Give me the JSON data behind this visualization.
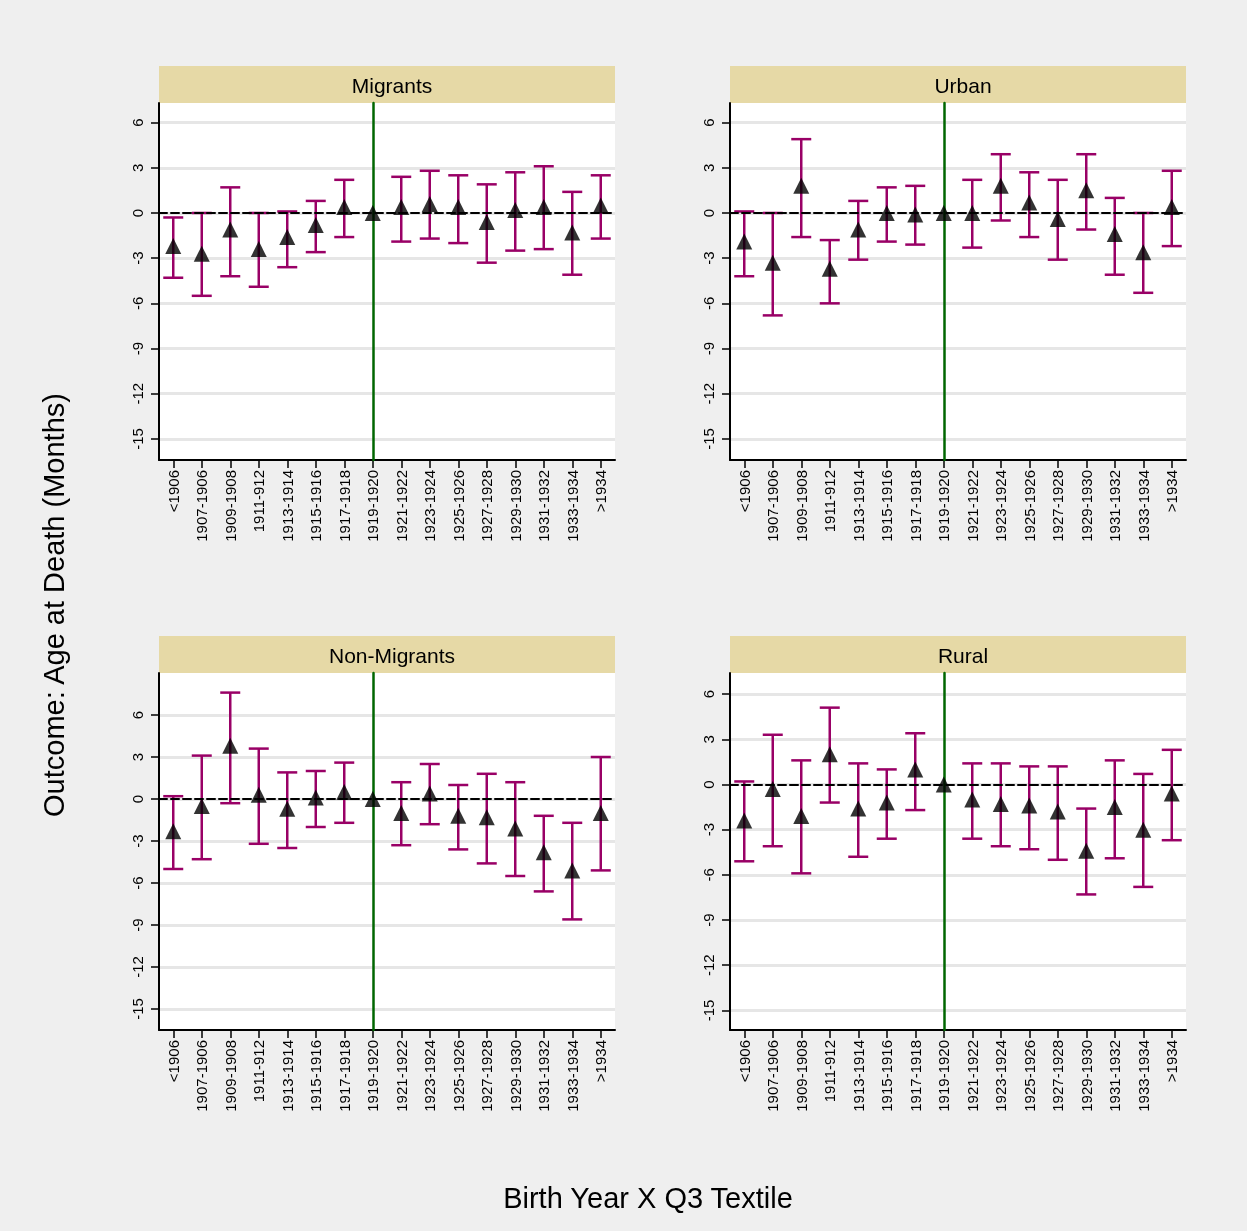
{
  "chart_data": [
    {
      "type": "scatter",
      "title": "Migrants",
      "ylabel": "Outcome: Age at Death (Months)",
      "categories": [
        "<1906",
        "1907-1906",
        "1909-1908",
        "1911-912",
        "1913-1914",
        "1915-1916",
        "1917-1918",
        "1919-1920",
        "1921-1922",
        "1923-1924",
        "1925-1926",
        "1927-1928",
        "1929-1930",
        "1931-1932",
        "1933-1934",
        ">1934"
      ],
      "series": [
        {
          "color": "#000000",
          "values": [
            -2.2,
            -2.7,
            -1.1,
            -2.4,
            -1.6,
            -0.8,
            0.4,
            0,
            0.4,
            0.6,
            0.4,
            -0.6,
            0.2,
            0.4,
            -1.3,
            0.5
          ],
          "errors": [
            [
              -4.3,
              -0.3
            ],
            [
              -5.5,
              0
            ],
            [
              -4.2,
              1.7
            ],
            [
              -4.9,
              0
            ],
            [
              -3.6,
              0.1
            ],
            [
              -2.6,
              0.8
            ],
            [
              -1.6,
              2.2
            ],
            null,
            [
              -1.9,
              2.4
            ],
            [
              -1.7,
              2.8
            ],
            [
              -2.0,
              2.5
            ],
            [
              -3.3,
              1.9
            ],
            [
              -2.5,
              2.7
            ],
            [
              -2.4,
              3.1
            ],
            [
              -4.1,
              1.4
            ],
            [
              -1.7,
              2.5
            ]
          ]
        }
      ],
      "ylim": [
        -16.4,
        7.3
      ],
      "yticks": [
        -15,
        -12,
        -9,
        -6,
        -3,
        0,
        3,
        6
      ],
      "grid": "y",
      "marker": "triangle",
      "ref_lines": [
        {
          "axis": "y",
          "value": 0,
          "color": "#000000",
          "line_style": "dashed"
        },
        {
          "axis": "x",
          "value": "1919-1920",
          "color": "#006600",
          "line_style": "solid"
        }
      ]
    },
    {
      "type": "scatter",
      "title": "Urban",
      "categories": [
        "<1906",
        "1907-1906",
        "1909-1908",
        "1911-912",
        "1913-1914",
        "1915-1916",
        "1917-1918",
        "1919-1920",
        "1921-1922",
        "1923-1924",
        "1925-1926",
        "1927-1928",
        "1929-1930",
        "1931-1932",
        "1933-1934",
        ">1934"
      ],
      "series": [
        {
          "color": "#000000",
          "values": [
            -1.9,
            -3.3,
            1.8,
            -3.7,
            -1.1,
            0,
            -0.1,
            0,
            0,
            1.8,
            0.7,
            -0.4,
            1.5,
            -1.4,
            -2.6,
            0.4
          ],
          "errors": [
            [
              -4.2,
              0.1
            ],
            [
              -6.8,
              0
            ],
            [
              -1.6,
              4.9
            ],
            [
              -6.0,
              -1.8
            ],
            [
              -3.1,
              0.8
            ],
            [
              -1.9,
              1.7
            ],
            [
              -2.1,
              1.8
            ],
            null,
            [
              -2.3,
              2.2
            ],
            [
              -0.5,
              3.9
            ],
            [
              -1.6,
              2.7
            ],
            [
              -3.1,
              2.2
            ],
            [
              -1.1,
              3.9
            ],
            [
              -4.1,
              1.0
            ],
            [
              -5.3,
              0
            ],
            [
              -2.2,
              2.8
            ]
          ]
        }
      ],
      "ylim": [
        -16.4,
        7.3
      ],
      "yticks": [
        -15,
        -12,
        -9,
        -6,
        -3,
        0,
        3,
        6
      ],
      "grid": "y",
      "marker": "triangle",
      "ref_lines": [
        {
          "axis": "y",
          "value": 0,
          "color": "#000000",
          "line_style": "dashed"
        },
        {
          "axis": "x",
          "value": "1919-1920",
          "color": "#006600",
          "line_style": "solid"
        }
      ]
    },
    {
      "type": "scatter",
      "title": "Non-Migrants",
      "xlabel": "Birth Year X Q3 Textile",
      "categories": [
        "<1906",
        "1907-1906",
        "1909-1908",
        "1911-912",
        "1913-1914",
        "1915-1916",
        "1917-1918",
        "1919-1920",
        "1921-1922",
        "1923-1924",
        "1925-1926",
        "1927-1928",
        "1929-1930",
        "1931-1932",
        "1933-1934",
        ">1934"
      ],
      "series": [
        {
          "color": "#000000",
          "values": [
            -2.3,
            -0.5,
            3.8,
            0.3,
            -0.7,
            0.1,
            0.5,
            0,
            -1.0,
            0.4,
            -1.2,
            -1.3,
            -2.1,
            -3.8,
            -5.1,
            -1.0
          ],
          "errors": [
            [
              -5.0,
              0.2
            ],
            [
              -4.3,
              3.1
            ],
            [
              -0.3,
              7.6
            ],
            [
              -3.2,
              3.6
            ],
            [
              -3.5,
              1.9
            ],
            [
              -2.0,
              2.0
            ],
            [
              -1.7,
              2.6
            ],
            null,
            [
              -3.3,
              1.2
            ],
            [
              -1.8,
              2.5
            ],
            [
              -3.6,
              1.0
            ],
            [
              -4.6,
              1.8
            ],
            [
              -5.5,
              1.2
            ],
            [
              -6.6,
              -1.2
            ],
            [
              -8.6,
              -1.7
            ],
            [
              -5.1,
              3.0
            ]
          ]
        }
      ],
      "ylim": [
        -16.5,
        9
      ],
      "yticks": [
        -15,
        -12,
        -9,
        -6,
        -3,
        0,
        3,
        6
      ],
      "grid": "y",
      "marker": "triangle",
      "ref_lines": [
        {
          "axis": "y",
          "value": 0,
          "color": "#000000",
          "line_style": "dashed"
        },
        {
          "axis": "x",
          "value": "1919-1920",
          "color": "#006600",
          "line_style": "solid"
        }
      ]
    },
    {
      "type": "scatter",
      "title": "Rural",
      "categories": [
        "<1906",
        "1907-1906",
        "1909-1908",
        "1911-912",
        "1913-1914",
        "1915-1916",
        "1917-1918",
        "1919-1920",
        "1921-1922",
        "1923-1924",
        "1925-1926",
        "1927-1928",
        "1929-1930",
        "1931-1932",
        "1933-1934",
        ">1934"
      ],
      "series": [
        {
          "color": "#000000",
          "values": [
            -2.4,
            -0.3,
            -2.1,
            2.0,
            -1.6,
            -1.2,
            1.0,
            0,
            -1.0,
            -1.3,
            -1.4,
            -1.8,
            -4.4,
            -1.5,
            -3.0,
            -0.6
          ],
          "errors": [
            [
              -5.1,
              0.2
            ],
            [
              -4.1,
              3.3
            ],
            [
              -5.9,
              1.6
            ],
            [
              -1.2,
              5.1
            ],
            [
              -4.8,
              1.4
            ],
            [
              -3.6,
              1.0
            ],
            [
              -1.7,
              3.4
            ],
            null,
            [
              -3.6,
              1.4
            ],
            [
              -4.1,
              1.4
            ],
            [
              -4.3,
              1.2
            ],
            [
              -5.0,
              1.2
            ],
            [
              -7.3,
              -1.6
            ],
            [
              -4.9,
              1.6
            ],
            [
              -6.8,
              0.7
            ],
            [
              -3.7,
              2.3
            ]
          ]
        }
      ],
      "ylim": [
        -16.3,
        7.4
      ],
      "yticks": [
        -15,
        -12,
        -9,
        -6,
        -3,
        0,
        3,
        6
      ],
      "grid": "y",
      "marker": "triangle",
      "ref_lines": [
        {
          "axis": "y",
          "value": 0,
          "color": "#000000",
          "line_style": "dashed"
        },
        {
          "axis": "x",
          "value": "1919-1920",
          "color": "#006600",
          "line_style": "solid"
        }
      ]
    }
  ]
}
